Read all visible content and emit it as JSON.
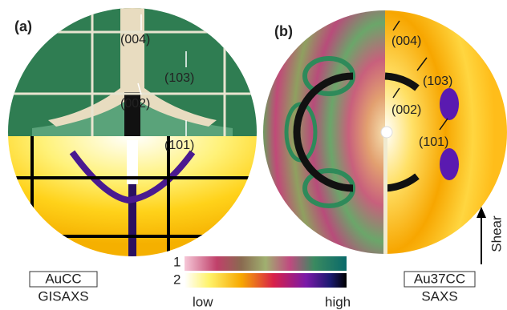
{
  "panels": [
    {
      "label": "(a)",
      "peaks": [
        "(004)",
        "(103)",
        "(002)",
        "(101)"
      ]
    },
    {
      "label": "(b)",
      "peaks": [
        "(004)",
        "(103)",
        "(002)",
        "(101)"
      ]
    }
  ],
  "colorbar": {
    "rows": [
      "1",
      "2"
    ],
    "low": "low",
    "high": "high"
  },
  "samples": [
    {
      "name": "AuCC",
      "method": "GISAXS"
    },
    {
      "name": "Au37CC",
      "method": "SAXS"
    }
  ],
  "shear": "Shear"
}
